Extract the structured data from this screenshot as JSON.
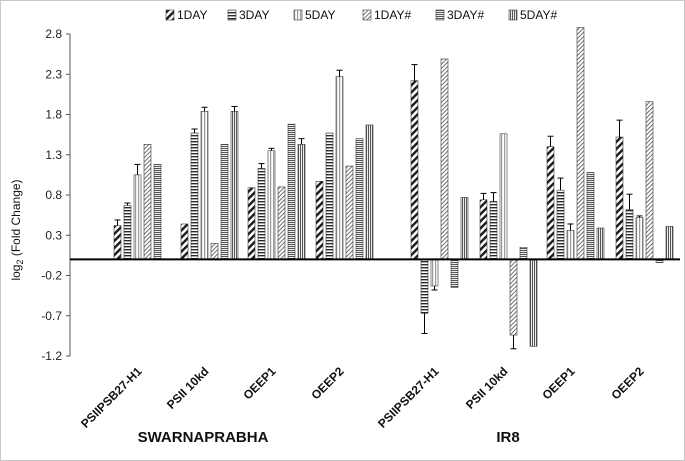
{
  "chart_data": {
    "type": "bar",
    "title": "",
    "xlabel": "",
    "ylabel": "log",
    "ylabel_sub": "2",
    "ylabel_rest": " (Fold Change)",
    "ylim": [
      -1.2,
      2.8
    ],
    "yticks": [
      "2.8",
      "2.3",
      "1.8",
      "1.3",
      "0.8",
      "0.3",
      "-0.2",
      "-0.7",
      "-1.2"
    ],
    "ytick_values": [
      2.8,
      2.3,
      1.8,
      1.3,
      0.8,
      0.3,
      -0.2,
      -0.7,
      -1.2
    ],
    "grid": false,
    "legend_position": "top",
    "categories": [
      "PSIIPSB27-H1",
      "PSII 10kd",
      "OEEP1",
      "OEEP2",
      "PSIIPSB27-H1",
      "PSII 10kd",
      "OEEP1",
      "OEEP2"
    ],
    "groups": [
      {
        "name": "SWARNAPRABHA",
        "categories": [
          "PSIIPSB27-H1",
          "PSII 10kd",
          "OEEP1",
          "OEEP2"
        ]
      },
      {
        "name": "IR8",
        "categories": [
          "PSIIPSB27-H1",
          "PSII 10kd",
          "OEEP1",
          "OEEP2"
        ]
      }
    ],
    "series": [
      {
        "name": "1DAY",
        "pattern": "wide-diagonal",
        "values": [
          0.42,
          0.44,
          0.89,
          0.97,
          2.22,
          0.74,
          1.4,
          1.52
        ],
        "errors": [
          0.07,
          0.0,
          0.0,
          0.0,
          0.2,
          0.08,
          0.13,
          0.21
        ]
      },
      {
        "name": "3DAY",
        "pattern": "horizontal-lines",
        "values": [
          0.67,
          1.57,
          1.13,
          1.57,
          -0.67,
          0.72,
          0.86,
          0.62
        ],
        "errors": [
          0.03,
          0.05,
          0.06,
          0.0,
          0.25,
          0.11,
          0.15,
          0.19
        ]
      },
      {
        "name": "5DAY",
        "pattern": "vertical-lines",
        "values": [
          1.05,
          1.84,
          1.35,
          2.27,
          -0.33,
          1.56,
          0.36,
          0.52
        ],
        "errors": [
          0.13,
          0.05,
          0.03,
          0.08,
          0.05,
          0.0,
          0.08,
          0.02
        ]
      },
      {
        "name": "1DAY#",
        "pattern": "fine-diagonal",
        "values": [
          1.43,
          0.2,
          0.9,
          1.16,
          2.49,
          -0.94,
          2.88,
          1.96
        ],
        "errors": [
          0.0,
          0.0,
          0.0,
          0.0,
          0.0,
          0.17,
          0.0,
          0.0
        ]
      },
      {
        "name": "3DAY#",
        "pattern": "dense-horizontal",
        "values": [
          1.18,
          1.43,
          1.68,
          1.5,
          -0.35,
          0.15,
          1.08,
          -0.04
        ],
        "errors": [
          0.0,
          0.0,
          0.0,
          0.0,
          0.0,
          0.0,
          0.0,
          0.0
        ]
      },
      {
        "name": "5DAY#",
        "pattern": "dense-vertical",
        "values": [
          0.0,
          1.84,
          1.43,
          1.67,
          0.77,
          -1.08,
          0.39,
          0.41
        ],
        "errors": [
          0.0,
          0.06,
          0.07,
          0.0,
          0.0,
          0.0,
          0.0,
          0.0
        ]
      }
    ]
  }
}
